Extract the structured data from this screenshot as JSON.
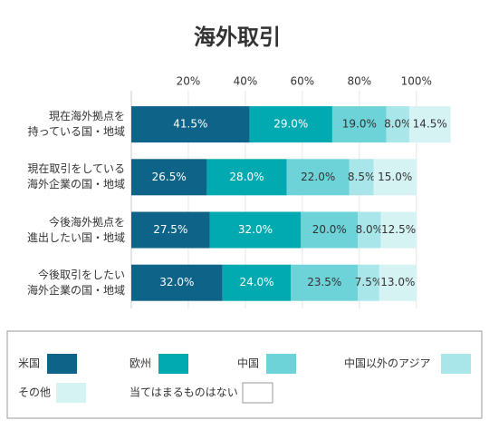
{
  "chart_data": {
    "type": "bar",
    "orientation": "horizontal",
    "stacked": true,
    "title": "海外取引",
    "categories": [
      "現在海外拠点を\n持っている国・地域",
      "現在取引をしている\n海外企業の国・地域",
      "今後海外拠点を\n進出したい国・地域",
      "今後取引をしたい\n海外企業の国・地域"
    ],
    "series": [
      {
        "name": "米国",
        "color": "#0e6388",
        "values": [
          41.5,
          26.5,
          27.5,
          32.0
        ],
        "value_labels": [
          "41.5%",
          "26.5%",
          "27.5%",
          "32.0%"
        ]
      },
      {
        "name": "欧州",
        "color": "#00aab0",
        "values": [
          29.0,
          28.0,
          32.0,
          24.0
        ],
        "value_labels": [
          "29.0%",
          "28.0%",
          "32.0%",
          "24.0%"
        ]
      },
      {
        "name": "中国",
        "color": "#6dd3d8",
        "values": [
          19.0,
          22.0,
          20.0,
          23.5
        ],
        "value_labels": [
          "19.0%",
          "22.0%",
          "20.0%",
          "23.5%"
        ]
      },
      {
        "name": "中国以外のアジア",
        "color": "#a9e6ea",
        "values": [
          8.0,
          8.5,
          8.0,
          7.5
        ],
        "value_labels": [
          "8.0%",
          "8.5%",
          "8.0%",
          "7.5%"
        ]
      },
      {
        "name": "その他",
        "color": "#d6f3f4",
        "values": [
          14.5,
          15.0,
          12.5,
          13.0
        ],
        "value_labels": [
          "14.5%",
          "15.0%",
          "12.5%",
          "13.0%"
        ]
      },
      {
        "name": "当てはまるものはない",
        "color": "#ffffff",
        "values": [
          0,
          0,
          0,
          0
        ]
      }
    ],
    "xlim": [
      0,
      115
    ],
    "xticks": [
      {
        "value": 20,
        "label": "20%"
      },
      {
        "value": 40,
        "label": "40%"
      },
      {
        "value": 60,
        "label": "60%"
      },
      {
        "value": 80,
        "label": "80%"
      },
      {
        "value": 100,
        "label": "100%"
      }
    ],
    "grid": true,
    "legend": "bottom"
  }
}
